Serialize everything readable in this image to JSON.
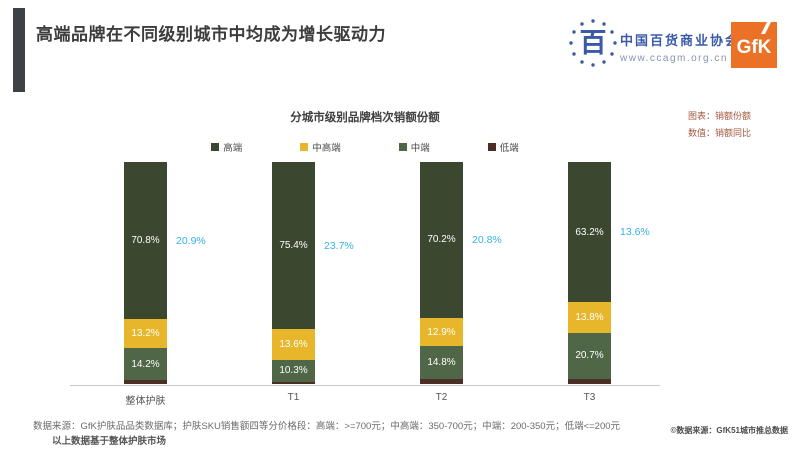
{
  "slide": {
    "title": "高端品牌在不同级别城市中均成为增长驱动力"
  },
  "logos": {
    "assoc_glyph": "百",
    "assoc_name": "中国百货商业协会",
    "assoc_url": "www.ccagm.org.cn",
    "assoc_color": "#3a5aa8",
    "gfk_text": "GfK",
    "gfk_color": "#ea7125"
  },
  "chart_note": {
    "line1": "图表：销额份额",
    "line2": "数值：销额同比"
  },
  "chart_data": {
    "type": "bar",
    "stacked": true,
    "unit": "percent",
    "title": "分城市级别品牌档次销额份额",
    "categories": [
      "整体护肤",
      "T1",
      "T2",
      "T3"
    ],
    "series": [
      {
        "name": "高端",
        "color": "#3b482f",
        "values": [
          70.8,
          75.4,
          70.2,
          63.2
        ],
        "labels_visible": true
      },
      {
        "name": "中高端",
        "color": "#e7b62a",
        "values": [
          13.2,
          13.6,
          12.9,
          13.8
        ],
        "labels_visible": true
      },
      {
        "name": "中端",
        "color": "#4f6647",
        "values": [
          14.2,
          10.3,
          14.8,
          20.7
        ],
        "labels_visible": true
      },
      {
        "name": "低端",
        "color": "#4b2f26",
        "values": [
          1.8,
          0.7,
          2.1,
          2.3
        ],
        "labels_visible": false
      }
    ],
    "growth": {
      "name": "销额同比",
      "color": "#36b2e6",
      "values": [
        "20.9%",
        "23.7%",
        "20.8%",
        "13.6%"
      ]
    },
    "ylim": [
      0,
      100
    ],
    "legend_position": "top",
    "bar_label_color": "#ffffff",
    "axis_color": "#c8c8c8"
  },
  "footnotes": {
    "line1": "数据来源：GfK护肤品品类数据库；护肤SKU销售额四等分价格段：高端：>=700元；中高端：350-700元；中端：200-350元；低端<=200元",
    "line2": "以上数据基于整体护肤市场",
    "copyright": "©数据来源：GfK51城市推总数据"
  }
}
